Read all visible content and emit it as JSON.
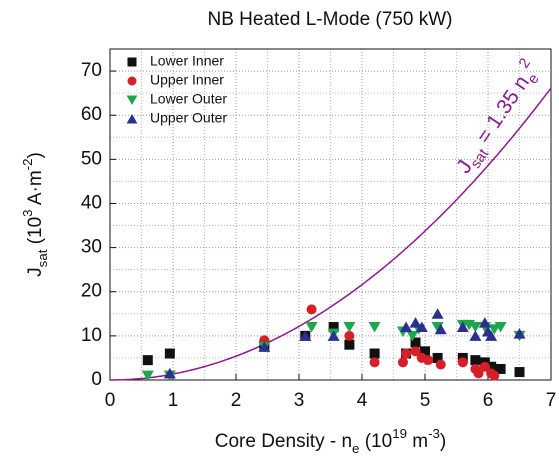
{
  "chart_data": {
    "type": "scatter",
    "title": "NB Heated L-Mode (750 kW)",
    "ylabel": [
      {
        "text": "J"
      },
      {
        "text": "sat",
        "shift": "sub"
      },
      {
        "text": " (10"
      },
      {
        "text": "3",
        "shift": "super"
      },
      {
        "text": " A·m"
      },
      {
        "text": "-2",
        "shift": "super"
      },
      {
        "text": ")"
      }
    ],
    "xlabel": [
      {
        "text": "Core Density - n"
      },
      {
        "text": "e",
        "shift": "sub"
      },
      {
        "text": " (10"
      },
      {
        "text": "19",
        "shift": "super"
      },
      {
        "text": " m"
      },
      {
        "text": "-3",
        "shift": "super"
      },
      {
        "text": ")"
      }
    ],
    "xlim": [
      0,
      7
    ],
    "xticks": [
      0,
      1,
      2,
      3,
      4,
      5,
      6,
      7
    ],
    "ylim": [
      0,
      75
    ],
    "yticks": [
      0,
      10,
      20,
      30,
      40,
      50,
      60,
      70
    ],
    "x_minor_grid": [
      0.5,
      1.5,
      2.5,
      3.5,
      4.5,
      5.5,
      6.5
    ],
    "y_minor_grid": [
      5,
      15,
      25,
      35,
      45,
      55,
      65
    ],
    "grid": true,
    "legend": "upper left",
    "curve": {
      "coefficient": 1.35,
      "exponent": 2,
      "color": "#8b1a8b",
      "label": [
        {
          "text": "J"
        },
        {
          "text": "sat",
          "shift": "sub"
        },
        {
          "text": " = 1.35 n"
        },
        {
          "text": "e",
          "shift": "sub"
        },
        {
          "text": "2",
          "shift": "super"
        }
      ]
    },
    "series": [
      {
        "name": "Lower Inner",
        "color": "#111111",
        "marker": "square",
        "x": [
          0.6,
          0.95,
          2.45,
          3.1,
          3.55,
          3.8,
          4.2,
          4.7,
          4.85,
          5.0,
          5.2,
          5.6,
          5.8,
          5.95,
          6.05,
          6.2,
          6.5
        ],
        "y": [
          4.5,
          6,
          8,
          10,
          12,
          8,
          6,
          6,
          8.5,
          6.5,
          5,
          5,
          4.5,
          4,
          3,
          2.5,
          1.8
        ]
      },
      {
        "name": "Upper Inner",
        "color": "#d81e28",
        "marker": "circle",
        "x": [
          2.45,
          3.2,
          3.8,
          4.2,
          4.65,
          4.7,
          4.85,
          4.95,
          5.05,
          5.25,
          5.6,
          5.8,
          5.85,
          5.95,
          6.05,
          6.1
        ],
        "y": [
          9,
          16,
          10,
          4,
          4,
          6,
          6.5,
          5,
          4.5,
          3.5,
          4,
          2.5,
          1.5,
          3,
          1.5,
          1
        ]
      },
      {
        "name": "Lower Outer",
        "color": "#1da64a",
        "marker": "triangle-down",
        "x": [
          0.6,
          0.95,
          2.45,
          3.2,
          3.55,
          3.8,
          4.2,
          4.65,
          4.8,
          4.9,
          5.2,
          5.6,
          5.7,
          5.8,
          5.95,
          6.1,
          6.2,
          6.5
        ],
        "y": [
          1,
          1,
          7.5,
          12,
          10.5,
          12,
          12,
          11,
          10,
          11.5,
          12,
          12.5,
          12.5,
          12,
          12,
          11.5,
          12,
          10
        ]
      },
      {
        "name": "Upper Outer",
        "color": "#2b2f8f",
        "marker": "triangle-up",
        "x": [
          0.95,
          2.45,
          3.1,
          3.55,
          4.7,
          4.85,
          4.95,
          5.2,
          5.25,
          5.6,
          5.8,
          5.95,
          6.0,
          6.05,
          6.5
        ],
        "y": [
          1.5,
          7.5,
          10,
          10,
          12,
          13,
          12,
          15,
          11.5,
          12,
          10,
          13,
          11,
          10,
          10.5
        ]
      }
    ]
  }
}
